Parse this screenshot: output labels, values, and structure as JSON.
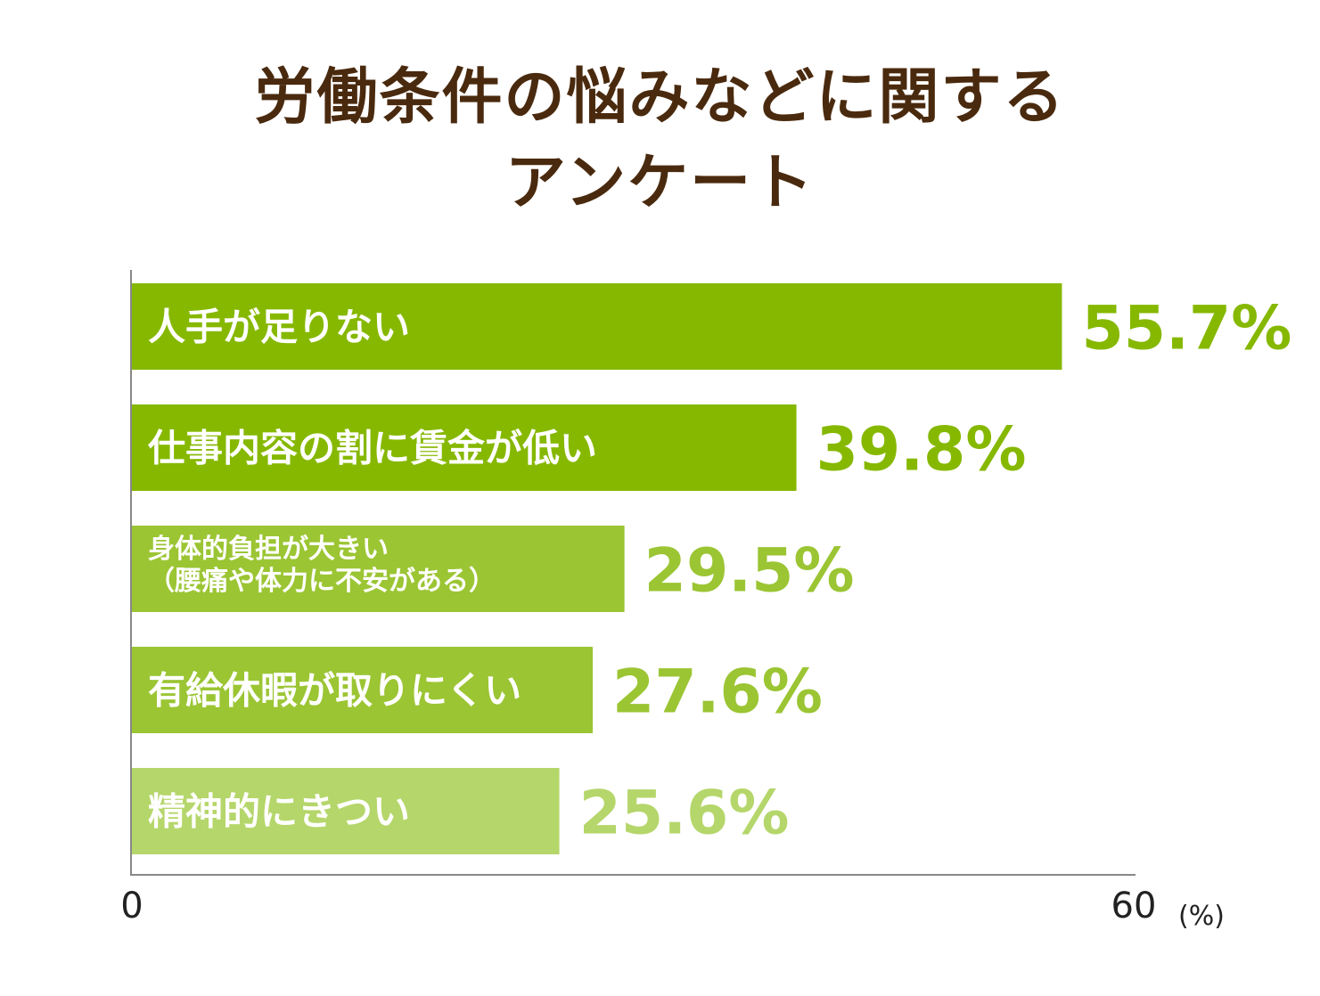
{
  "chart_data": {
    "type": "bar",
    "orientation": "horizontal",
    "title_lines": [
      "労働条件の悩みなどに関する",
      "アンケート"
    ],
    "categories": [
      [
        "人手が足りない"
      ],
      [
        "仕事内容の割に賃金が低い"
      ],
      [
        "身体的負担が大きい",
        "（腰痛や体力に不安がある）"
      ],
      [
        "有給休暇が取りにくい"
      ],
      [
        "精神的にきつい"
      ]
    ],
    "values": [
      55.7,
      39.8,
      29.5,
      27.6,
      25.6
    ],
    "value_labels": [
      "55.7%",
      "39.8%",
      "29.5%",
      "27.6%",
      "25.6%"
    ],
    "bar_colors": [
      "#86b800",
      "#86b800",
      "#9bc533",
      "#9bc533",
      "#b5d66a"
    ],
    "xlim": [
      0,
      60
    ],
    "x_ticks": [
      "0",
      "60"
    ],
    "x_unit": "(%)",
    "grid": false,
    "legend": "none"
  }
}
